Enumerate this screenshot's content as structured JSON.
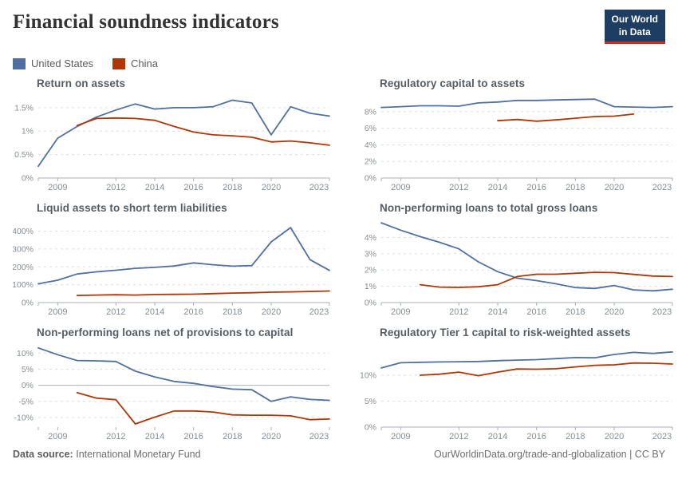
{
  "header": {
    "title": "Financial soundness indicators",
    "logo": {
      "line1": "Our World",
      "line2": "in Data"
    }
  },
  "legend": {
    "entries": [
      {
        "label": "United States",
        "color": "#4f70a0"
      },
      {
        "label": "China",
        "color": "#b13507"
      }
    ]
  },
  "footer": {
    "source_label": "Data source:",
    "source_value": "International Monetary Fund",
    "right_text": "OurWorldinData.org/trade-and-globalization | CC BY"
  },
  "chart_data": [
    {
      "type": "line",
      "title": "Return on assets",
      "unit": "%",
      "xlim": [
        2008,
        2023
      ],
      "x_ticks": [
        2009,
        2012,
        2014,
        2016,
        2018,
        2020,
        2023
      ],
      "ylim": [
        0,
        1.77
      ],
      "y_ticks": [
        0,
        0.5,
        1,
        1.5
      ],
      "y_tick_labels": [
        "0%",
        "0.5%",
        "1%",
        "1.5%"
      ],
      "grid": "dashed",
      "legend_position": "top-shared",
      "series": [
        {
          "name": "United States",
          "color": "#4f70a0",
          "start_year": 2008,
          "values": [
            0.25,
            0.85,
            1.1,
            1.3,
            1.45,
            1.58,
            1.47,
            1.5,
            1.5,
            1.52,
            1.66,
            1.6,
            0.92,
            1.52,
            1.38,
            1.32
          ]
        },
        {
          "name": "China",
          "color": "#b13507",
          "start_year": 2010,
          "values": [
            1.12,
            1.27,
            1.28,
            1.27,
            1.23,
            1.1,
            0.98,
            0.92,
            0.9,
            0.87,
            0.77,
            0.79,
            0.75,
            0.7
          ]
        }
      ]
    },
    {
      "type": "line",
      "title": "Regulatory capital to assets",
      "unit": "%",
      "xlim": [
        2008,
        2023
      ],
      "x_ticks": [
        2009,
        2012,
        2014,
        2016,
        2018,
        2020,
        2023
      ],
      "ylim": [
        0,
        10
      ],
      "y_ticks": [
        0,
        2,
        4,
        6,
        8
      ],
      "y_tick_labels": [
        "0%",
        "2%",
        "4%",
        "6%",
        "8%"
      ],
      "grid": "dashed",
      "series": [
        {
          "name": "United States",
          "color": "#4f70a0",
          "start_year": 2008,
          "values": [
            8.5,
            8.6,
            8.7,
            8.7,
            8.65,
            9.05,
            9.15,
            9.35,
            9.35,
            9.4,
            9.45,
            9.5,
            8.6,
            8.55,
            8.5,
            8.6
          ]
        },
        {
          "name": "China",
          "color": "#b13507",
          "start_year": 2014,
          "values": [
            6.9,
            7.05,
            6.85,
            7.0,
            7.2,
            7.4,
            7.45,
            7.7
          ]
        }
      ]
    },
    {
      "type": "line",
      "title": "Liquid assets to short term liabilities",
      "unit": "%",
      "xlim": [
        2008,
        2023
      ],
      "x_ticks": [
        2009,
        2012,
        2014,
        2016,
        2018,
        2020,
        2023
      ],
      "ylim": [
        0,
        465
      ],
      "y_ticks": [
        0,
        100,
        200,
        300,
        400
      ],
      "y_tick_labels": [
        "0%",
        "100%",
        "200%",
        "300%",
        "400%"
      ],
      "grid": "dashed",
      "series": [
        {
          "name": "United States",
          "color": "#4f70a0",
          "start_year": 2008,
          "values": [
            105,
            125,
            160,
            172,
            181,
            192,
            197,
            205,
            222,
            212,
            204,
            207,
            340,
            420,
            240,
            180
          ]
        },
        {
          "name": "China",
          "color": "#b13507",
          "start_year": 2010,
          "values": [
            40,
            42,
            44,
            42,
            45,
            46,
            47,
            50,
            53,
            55,
            58,
            60,
            62,
            65
          ]
        }
      ]
    },
    {
      "type": "line",
      "title": "Non-performing loans to total gross loans",
      "unit": "%",
      "xlim": [
        2008,
        2023
      ],
      "x_ticks": [
        2009,
        2012,
        2014,
        2016,
        2018,
        2020,
        2023
      ],
      "ylim": [
        0,
        5.1
      ],
      "y_ticks": [
        0,
        1,
        2,
        3,
        4
      ],
      "y_tick_labels": [
        "0%",
        "1%",
        "2%",
        "3%",
        "4%"
      ],
      "grid": "dashed",
      "series": [
        {
          "name": "United States",
          "color": "#4f70a0",
          "start_year": 2008,
          "values": [
            4.9,
            4.45,
            4.05,
            3.7,
            3.3,
            2.5,
            1.9,
            1.5,
            1.35,
            1.15,
            0.92,
            0.87,
            1.05,
            0.78,
            0.72,
            0.82
          ]
        },
        {
          "name": "China",
          "color": "#b13507",
          "start_year": 2010,
          "values": [
            1.1,
            0.95,
            0.93,
            0.97,
            1.1,
            1.6,
            1.74,
            1.74,
            1.8,
            1.86,
            1.84,
            1.73,
            1.63,
            1.6
          ]
        }
      ]
    },
    {
      "type": "line",
      "title": "Non-performing loans net of provisions to capital",
      "unit": "%",
      "xlim": [
        2008,
        2023
      ],
      "x_ticks": [
        2009,
        2012,
        2014,
        2016,
        2018,
        2020,
        2023
      ],
      "ylim": [
        -13,
        12.8
      ],
      "y_ticks": [
        -10,
        -5,
        0,
        5,
        10
      ],
      "y_tick_labels": [
        "-10%",
        "-5%",
        "0%",
        "5%",
        "10%"
      ],
      "grid": "dashed",
      "series": [
        {
          "name": "United States",
          "color": "#4f70a0",
          "start_year": 2008,
          "values": [
            11.6,
            9.5,
            7.7,
            7.6,
            7.4,
            4.4,
            2.6,
            1.2,
            0.6,
            -0.4,
            -1.2,
            -1.4,
            -5.0,
            -3.6,
            -4.4,
            -4.7
          ]
        },
        {
          "name": "China",
          "color": "#b13507",
          "start_year": 2010,
          "values": [
            -2.3,
            -4.0,
            -4.5,
            -12.0,
            -9.9,
            -8.0,
            -8.0,
            -8.3,
            -9.2,
            -9.3,
            -9.3,
            -9.5,
            -10.7,
            -10.5
          ]
        }
      ]
    },
    {
      "type": "line",
      "title": "Regulatory Tier 1 capital to risk-weighted assets",
      "unit": "%",
      "xlim": [
        2008,
        2023
      ],
      "x_ticks": [
        2009,
        2012,
        2014,
        2016,
        2018,
        2020,
        2023
      ],
      "ylim": [
        0,
        16
      ],
      "y_ticks": [
        0,
        5,
        10
      ],
      "y_tick_labels": [
        "0%",
        "5%",
        "10%"
      ],
      "grid": "dashed",
      "series": [
        {
          "name": "United States",
          "color": "#4f70a0",
          "start_year": 2008,
          "values": [
            11.4,
            12.4,
            12.5,
            12.55,
            12.6,
            12.65,
            12.8,
            12.9,
            13.0,
            13.2,
            13.4,
            13.35,
            14.0,
            14.4,
            14.2,
            14.5
          ]
        },
        {
          "name": "China",
          "color": "#b13507",
          "start_year": 2010,
          "values": [
            10.0,
            10.2,
            10.6,
            9.9,
            10.6,
            11.2,
            11.15,
            11.25,
            11.6,
            11.9,
            12.0,
            12.35,
            12.3,
            12.15
          ]
        }
      ]
    }
  ]
}
